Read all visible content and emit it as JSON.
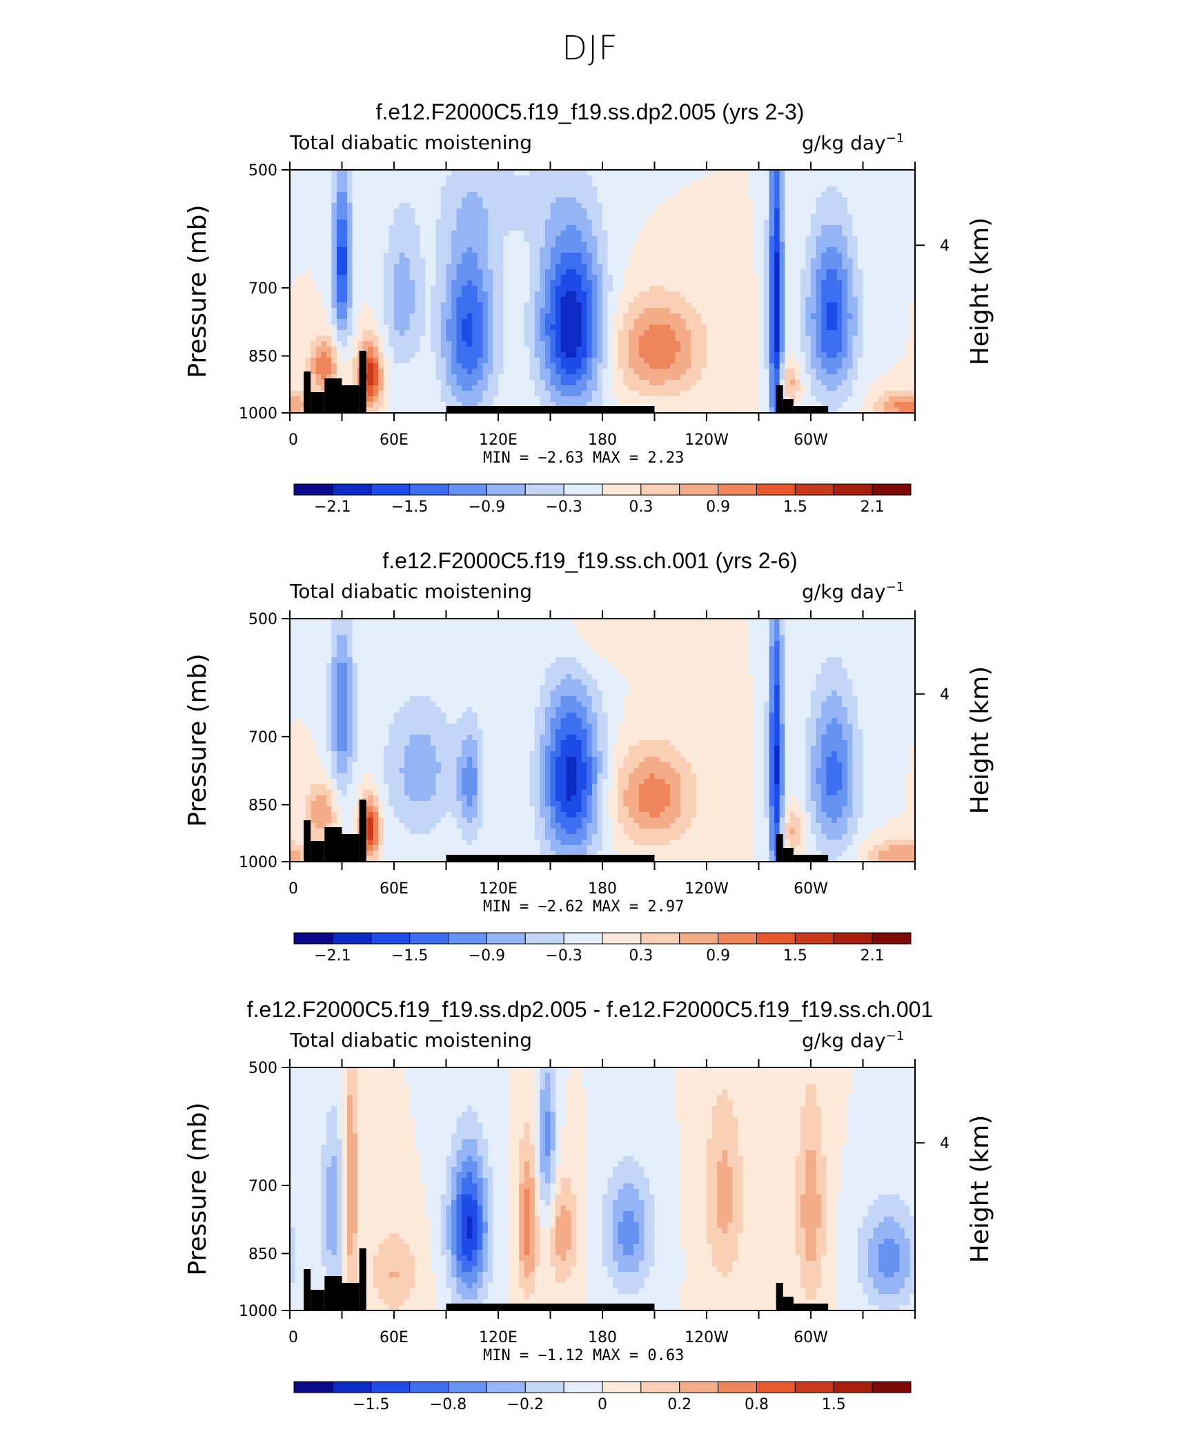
{
  "page": {
    "title": "DJF"
  },
  "chart_data": [
    {
      "type": "heatmap",
      "title": "f.e12.F2000C5.f19_f19.ss.dp2.005 (yrs 2-3)",
      "left_label": "Total diabatic moistening",
      "units_label": "g/kg day",
      "units_exp": "−1",
      "ylabel": "Pressure (mb)",
      "ylabel_right": "Height (km)",
      "y_ticks": [
        "500",
        "700",
        "850",
        "1000"
      ],
      "y_right_ticks": [
        "4"
      ],
      "x_ticks": [
        "0",
        "60E",
        "120E",
        "180",
        "120W",
        "60W"
      ],
      "min_label": "MIN =",
      "min_value": "−2.63",
      "max_label": "MAX =",
      "max_value": "2.23",
      "colorbar_labels": [
        "−2.1",
        "−1.5",
        "−0.9",
        "−0.3",
        "0.3",
        "0.9",
        "1.5",
        "2.1"
      ],
      "value_range": [
        -2.63,
        2.23
      ],
      "features": [
        {
          "lon": 30,
          "p": 650,
          "amp": -1.9,
          "wlon": 4,
          "wp": 110
        },
        {
          "lon": 20,
          "p": 875,
          "amp": 1.3,
          "wlon": 6,
          "wp": 50
        },
        {
          "lon": 46,
          "p": 900,
          "amp": 2.0,
          "wlon": 5,
          "wp": 60
        },
        {
          "lon": 65,
          "p": 720,
          "amp": -0.9,
          "wlon": 8,
          "wp": 110
        },
        {
          "lon": 103,
          "p": 790,
          "amp": -1.8,
          "wlon": 11,
          "wp": 140
        },
        {
          "lon": 162,
          "p": 780,
          "amp": -2.4,
          "wlon": 13,
          "wp": 140
        },
        {
          "lon": 212,
          "p": 830,
          "amp": 1.3,
          "wlon": 18,
          "wp": 80
        },
        {
          "lon": 280,
          "p": 750,
          "amp": -2.3,
          "wlon": 3,
          "wp": 260
        },
        {
          "lon": 287,
          "p": 920,
          "amp": 0.9,
          "wlon": 5,
          "wp": 40
        },
        {
          "lon": 312,
          "p": 760,
          "amp": -1.8,
          "wlon": 10,
          "wp": 130
        },
        {
          "lon": 355,
          "p": 980,
          "amp": 1.2,
          "wlon": 12,
          "wp": 30
        },
        {
          "lon": 120,
          "p": 540,
          "amp": -0.4,
          "wlon": 30,
          "wp": 60
        }
      ]
    },
    {
      "type": "heatmap",
      "title": "f.e12.F2000C5.f19_f19.ss.ch.001 (yrs 2-6)",
      "left_label": "Total diabatic moistening",
      "units_label": "g/kg day",
      "units_exp": "−1",
      "ylabel": "Pressure (mb)",
      "ylabel_right": "Height (km)",
      "y_ticks": [
        "500",
        "700",
        "850",
        "1000"
      ],
      "y_right_ticks": [
        "4"
      ],
      "x_ticks": [
        "0",
        "60E",
        "120E",
        "180",
        "120W",
        "60W"
      ],
      "min_label": "MIN =",
      "min_value": "−2.62",
      "max_label": "MAX =",
      "max_value": "2.97",
      "colorbar_labels": [
        "−2.1",
        "−1.5",
        "−0.9",
        "−0.3",
        "0.3",
        "0.9",
        "1.5",
        "2.1"
      ],
      "value_range": [
        -2.62,
        2.97
      ],
      "features": [
        {
          "lon": 30,
          "p": 650,
          "amp": -1.6,
          "wlon": 5,
          "wp": 110
        },
        {
          "lon": 18,
          "p": 870,
          "amp": 1.2,
          "wlon": 6,
          "wp": 50
        },
        {
          "lon": 46,
          "p": 910,
          "amp": 2.4,
          "wlon": 4,
          "wp": 55
        },
        {
          "lon": 75,
          "p": 770,
          "amp": -1.0,
          "wlon": 15,
          "wp": 110
        },
        {
          "lon": 104,
          "p": 800,
          "amp": -1.3,
          "wlon": 5,
          "wp": 90
        },
        {
          "lon": 162,
          "p": 790,
          "amp": -2.5,
          "wlon": 12,
          "wp": 140
        },
        {
          "lon": 209,
          "p": 830,
          "amp": 1.4,
          "wlon": 16,
          "wp": 80
        },
        {
          "lon": 280,
          "p": 760,
          "amp": -2.4,
          "wlon": 3,
          "wp": 250
        },
        {
          "lon": 290,
          "p": 915,
          "amp": 0.9,
          "wlon": 5,
          "wp": 40
        },
        {
          "lon": 313,
          "p": 780,
          "amp": -1.7,
          "wlon": 10,
          "wp": 130
        },
        {
          "lon": 352,
          "p": 985,
          "amp": 1.2,
          "wlon": 14,
          "wp": 30
        },
        {
          "lon": 170,
          "p": 520,
          "amp": 0.4,
          "wlon": 12,
          "wp": 50
        }
      ]
    },
    {
      "type": "heatmap",
      "title": "f.e12.F2000C5.f19_f19.ss.dp2.005 - f.e12.F2000C5.f19_f19.ss.ch.001",
      "left_label": "Total diabatic moistening",
      "units_label": "g/kg day",
      "units_exp": "−1",
      "ylabel": "Pressure (mb)",
      "ylabel_right": "Height (km)",
      "y_ticks": [
        "500",
        "700",
        "850",
        "1000"
      ],
      "y_right_ticks": [
        "4"
      ],
      "x_ticks": [
        "0",
        "60E",
        "120E",
        "180",
        "120W",
        "60W"
      ],
      "min_label": "MIN =",
      "min_value": "−1.12",
      "max_label": "MAX =",
      "max_value": "0.63",
      "colorbar_labels": [
        "−1.5",
        "−0.8",
        "−0.2",
        "0",
        "0.2",
        "0.8",
        "1.5"
      ],
      "value_range": [
        -1.12,
        0.63
      ],
      "features": [
        {
          "lon": 35,
          "p": 700,
          "amp": 0.5,
          "wlon": 3,
          "wp": 170
        },
        {
          "lon": 25,
          "p": 750,
          "amp": -0.4,
          "wlon": 5,
          "wp": 140
        },
        {
          "lon": 103,
          "p": 790,
          "amp": -0.9,
          "wlon": 8,
          "wp": 120
        },
        {
          "lon": 137,
          "p": 780,
          "amp": 0.55,
          "wlon": 4,
          "wp": 120
        },
        {
          "lon": 157,
          "p": 800,
          "amp": 0.4,
          "wlon": 6,
          "wp": 90
        },
        {
          "lon": 148,
          "p": 620,
          "amp": -0.5,
          "wlon": 4,
          "wp": 110
        },
        {
          "lon": 195,
          "p": 800,
          "amp": -0.5,
          "wlon": 10,
          "wp": 100
        },
        {
          "lon": 250,
          "p": 720,
          "amp": 0.35,
          "wlon": 8,
          "wp": 140
        },
        {
          "lon": 300,
          "p": 750,
          "amp": 0.4,
          "wlon": 6,
          "wp": 160
        },
        {
          "lon": 345,
          "p": 860,
          "amp": -0.5,
          "wlon": 12,
          "wp": 90
        },
        {
          "lon": 60,
          "p": 900,
          "amp": 0.3,
          "wlon": 10,
          "wp": 80
        }
      ]
    }
  ]
}
